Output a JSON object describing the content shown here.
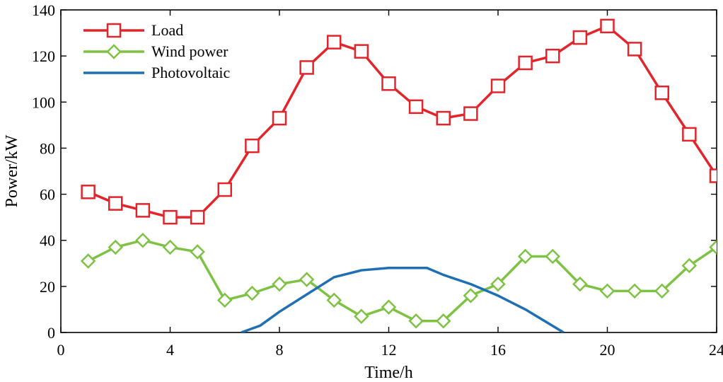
{
  "chart_data": {
    "type": "line",
    "title": "",
    "xlabel": "Time/h",
    "ylabel": "Power/kW",
    "xlim": [
      0,
      24
    ],
    "ylim": [
      0,
      140
    ],
    "xticks": [
      0,
      4,
      8,
      12,
      16,
      20,
      24
    ],
    "yticks": [
      0,
      20,
      40,
      60,
      80,
      100,
      120,
      140
    ],
    "grid": false,
    "legend_position": "top-left",
    "series": [
      {
        "name": "Load",
        "color": "#e3242b",
        "marker": "square",
        "x": [
          1,
          2,
          3,
          4,
          5,
          6,
          7,
          8,
          9,
          10,
          11,
          12,
          13,
          14,
          15,
          16,
          17,
          18,
          19,
          20,
          21,
          22,
          23,
          24
        ],
        "values": [
          61,
          56,
          53,
          50,
          50,
          62,
          81,
          93,
          115,
          126,
          122,
          108,
          98,
          93,
          95,
          107,
          117,
          120,
          128,
          133,
          123,
          104,
          86,
          68
        ]
      },
      {
        "name": "Wind power",
        "color": "#7dc242",
        "marker": "diamond",
        "x": [
          1,
          2,
          3,
          4,
          5,
          6,
          7,
          8,
          9,
          10,
          11,
          12,
          13,
          14,
          15,
          16,
          17,
          18,
          19,
          20,
          21,
          22,
          23,
          24
        ],
        "values": [
          31,
          37,
          40,
          37,
          35,
          14,
          17,
          21,
          23,
          14,
          7,
          11,
          5,
          5,
          16,
          21,
          33,
          33,
          21,
          18,
          18,
          18,
          29,
          37
        ]
      },
      {
        "name": "Photovoltaic",
        "color": "#1f6fb5",
        "marker": "none",
        "x": [
          6.6,
          7.3,
          8,
          8.8,
          10,
          11,
          12,
          13,
          13.4,
          14,
          15,
          16,
          17,
          18.4
        ],
        "values": [
          0,
          3,
          9,
          15,
          24,
          27,
          28,
          28,
          28,
          25,
          21,
          16,
          10,
          0
        ]
      }
    ]
  }
}
